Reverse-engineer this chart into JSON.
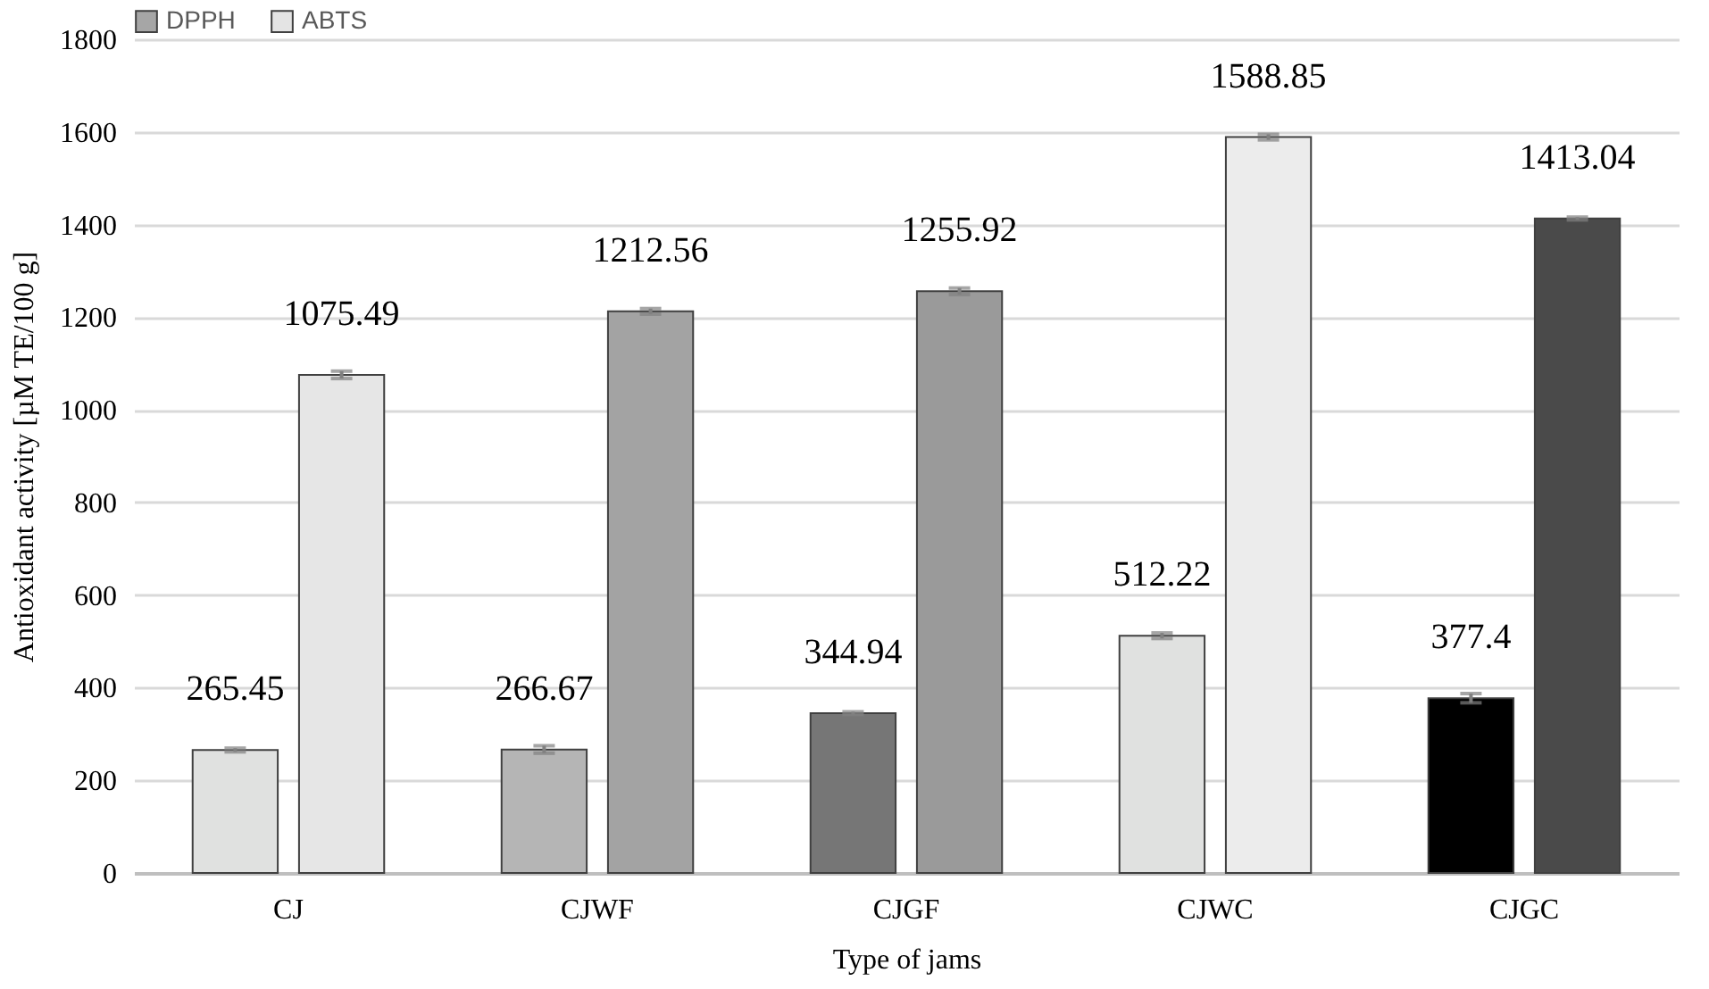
{
  "chart_data": {
    "type": "bar",
    "xlabel": "Type of jams",
    "ylabel": "Antioxidant activity [µM TE/100 g]",
    "categories": [
      "CJ",
      "CJWF",
      "CJGF",
      "CJWC",
      "CJGC"
    ],
    "series": [
      {
        "name": "DPPH",
        "color": "#a6a6a6",
        "colors": [
          "#e0e1e0",
          "#b5b5b5",
          "#767676",
          "#e0e1e0",
          "#000000"
        ],
        "values": [
          265.45,
          266.67,
          344.94,
          512.22,
          377.4
        ],
        "errors": [
          4,
          8,
          3,
          6,
          10
        ]
      },
      {
        "name": "ABTS",
        "color": "#e4e4e4",
        "colors": [
          "#e6e6e6",
          "#a3a3a3",
          "#9a9a9a",
          "#ececec",
          "#4a4a4a"
        ],
        "values": [
          1075.49,
          1212.56,
          1255.92,
          1588.85,
          1413.04
        ],
        "errors": [
          8,
          6,
          7,
          6,
          3
        ]
      }
    ],
    "ylim": [
      0,
      1800
    ],
    "yticks": [
      0,
      200,
      400,
      600,
      800,
      1000,
      1200,
      1400,
      1600,
      1800
    ],
    "grid": "y",
    "legend": "top",
    "data_labels": true
  }
}
